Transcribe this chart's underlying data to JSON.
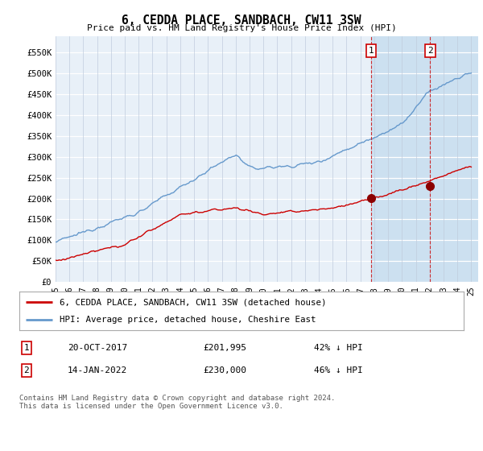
{
  "title": "6, CEDDA PLACE, SANDBACH, CW11 3SW",
  "subtitle": "Price paid vs. HM Land Registry's House Price Index (HPI)",
  "ylabel_ticks": [
    "£0",
    "£50K",
    "£100K",
    "£150K",
    "£200K",
    "£250K",
    "£300K",
    "£350K",
    "£400K",
    "£450K",
    "£500K",
    "£550K"
  ],
  "ytick_values": [
    0,
    50000,
    100000,
    150000,
    200000,
    250000,
    300000,
    350000,
    400000,
    450000,
    500000,
    550000
  ],
  "ylim": [
    0,
    590000
  ],
  "hpi_color": "#6699cc",
  "price_color": "#cc0000",
  "marker1_x": 2017.79,
  "marker1_price": 201995,
  "marker2_x": 2022.04,
  "marker2_price": 230000,
  "marker1_label": "20-OCT-2017",
  "marker1_value": "£201,995",
  "marker1_pct": "42% ↓ HPI",
  "marker2_label": "14-JAN-2022",
  "marker2_value": "£230,000",
  "marker2_pct": "46% ↓ HPI",
  "legend_line1": "6, CEDDA PLACE, SANDBACH, CW11 3SW (detached house)",
  "legend_line2": "HPI: Average price, detached house, Cheshire East",
  "footer": "Contains HM Land Registry data © Crown copyright and database right 2024.\nThis data is licensed under the Open Government Licence v3.0.",
  "background_color": "#ffffff",
  "plot_bg_color": "#e8f0f8",
  "shade_color": "#cce0f0"
}
